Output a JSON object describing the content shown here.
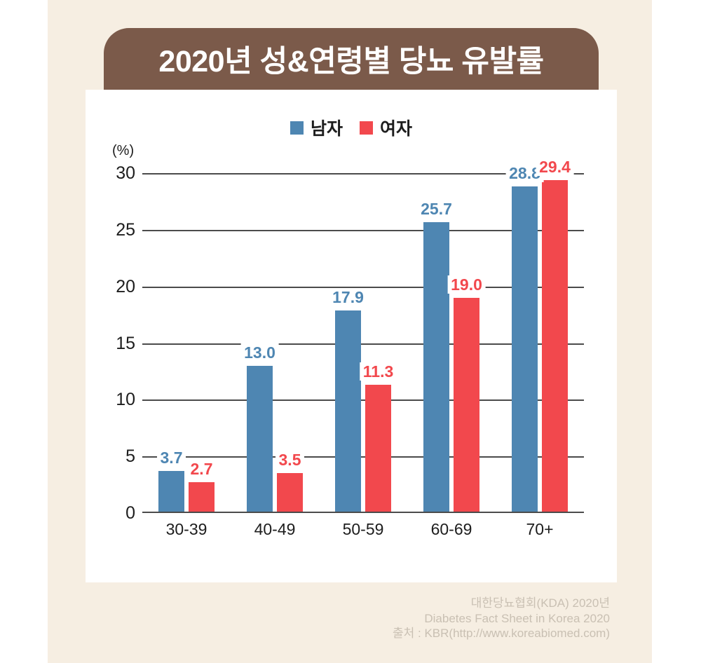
{
  "page": {
    "background_color": "#ffffff",
    "band_color": "#f6eee2"
  },
  "header": {
    "title": "2020년 성&연령별 당뇨 유발률",
    "banner_color": "#7b5a4a",
    "title_color": "#ffffff"
  },
  "chart_data": {
    "type": "bar",
    "title": "2020년 성&연령별 당뇨 유발률",
    "unit_label": "(%)",
    "categories": [
      "30-39",
      "40-49",
      "50-59",
      "60-69",
      "70+"
    ],
    "series": [
      {
        "name": "남자",
        "color": "#4e86b2",
        "values": [
          3.7,
          13.0,
          17.9,
          25.7,
          28.8
        ]
      },
      {
        "name": "여자",
        "color": "#f2484d",
        "values": [
          2.7,
          3.5,
          11.3,
          19.0,
          29.4
        ]
      }
    ],
    "y_ticks": [
      30,
      25,
      20,
      15,
      10,
      5,
      0
    ],
    "ylim": [
      0,
      30
    ],
    "grid": true,
    "grid_color": "#4b4b4b",
    "legend_position": "top-center",
    "value_label_decimals": 1
  },
  "footer": {
    "lines": [
      "대한당뇨협회(KDA) 2020년",
      "Diabetes Fact Sheet in Korea 2020",
      "출처 : KBR(http://www.koreabiomed.com)"
    ]
  }
}
